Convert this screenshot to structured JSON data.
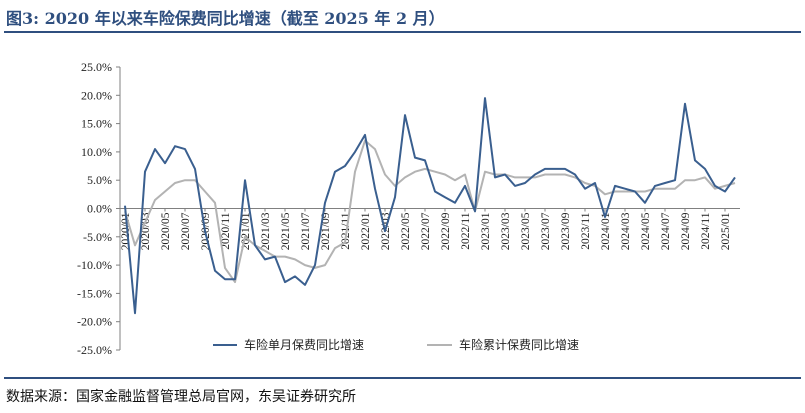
{
  "figure": {
    "title": "图3:  2020 年以来车险保费同比增速（截至 2025 年 2 月）",
    "source": "数据来源：国家金融监督管理总局官网，东吴证券研究所"
  },
  "chart_data": {
    "type": "line",
    "title": "",
    "xlabel": "",
    "ylabel": "",
    "ylim": [
      -25,
      25
    ],
    "y_ticks": [
      "25.0%",
      "20.0%",
      "15.0%",
      "10.0%",
      "5.0%",
      "0.0%",
      "-5.0%",
      "-10.0%",
      "-15.0%",
      "-20.0%",
      "-25.0%"
    ],
    "x_tick_labels": [
      "2020/01",
      "2020/03",
      "2020/05",
      "2020/07",
      "2020/09",
      "2020/11",
      "2021/01",
      "2021/03",
      "2021/05",
      "2021/07",
      "2021/09",
      "2021/11",
      "2022/01",
      "2022/03",
      "2022/05",
      "2022/07",
      "2022/09",
      "2022/11",
      "2023/01",
      "2023/03",
      "2023/05",
      "2023/07",
      "2023/09",
      "2023/11",
      "2024/01",
      "2024/03",
      "2024/05",
      "2024/07",
      "2024/09",
      "2024/11",
      "2025/01"
    ],
    "x": [
      "2020/01",
      "2020/02",
      "2020/03",
      "2020/04",
      "2020/05",
      "2020/06",
      "2020/07",
      "2020/08",
      "2020/09",
      "2020/10",
      "2020/11",
      "2020/12",
      "2021/01",
      "2021/02",
      "2021/03",
      "2021/04",
      "2021/05",
      "2021/06",
      "2021/07",
      "2021/08",
      "2021/09",
      "2021/10",
      "2021/11",
      "2021/12",
      "2022/01",
      "2022/02",
      "2022/03",
      "2022/04",
      "2022/05",
      "2022/06",
      "2022/07",
      "2022/08",
      "2022/09",
      "2022/10",
      "2022/11",
      "2022/12",
      "2023/01",
      "2023/02",
      "2023/03",
      "2023/04",
      "2023/05",
      "2023/06",
      "2023/07",
      "2023/08",
      "2023/09",
      "2023/10",
      "2023/11",
      "2023/12",
      "2024/01",
      "2024/02",
      "2024/03",
      "2024/04",
      "2024/05",
      "2024/06",
      "2024/07",
      "2024/08",
      "2024/09",
      "2024/10",
      "2024/11",
      "2024/12",
      "2025/01",
      "2025/02"
    ],
    "series": [
      {
        "name": "车险单月保费同比增速",
        "color": "#3a5f8f",
        "values": [
          0.5,
          -18.5,
          6.5,
          10.5,
          8.0,
          11.0,
          10.5,
          7.0,
          -4.0,
          -11.0,
          -12.5,
          -12.5,
          5.0,
          -6.5,
          -9.0,
          -8.5,
          -13.0,
          -12.0,
          -13.5,
          -10.0,
          1.0,
          6.5,
          7.5,
          10.0,
          13.0,
          3.5,
          -4.0,
          2.0,
          16.5,
          9.0,
          8.5,
          3.0,
          2.0,
          1.0,
          4.0,
          -0.5,
          19.5,
          5.5,
          6.0,
          4.0,
          4.5,
          6.0,
          7.0,
          7.0,
          7.0,
          6.0,
          3.5,
          4.5,
          -1.5,
          4.0,
          3.5,
          3.0,
          1.0,
          4.0,
          4.5,
          5.0,
          18.5,
          8.5,
          7.0,
          4.0,
          3.0,
          5.5
        ]
      },
      {
        "name": "车险累计保费同比增速",
        "color": "#b3b3b3",
        "values": [
          -0.5,
          -6.5,
          -2.5,
          1.5,
          3.0,
          4.5,
          5.0,
          5.0,
          3.0,
          1.0,
          -10.5,
          -13.0,
          -5.0,
          -6.5,
          -7.5,
          -8.5,
          -8.5,
          -9.0,
          -10.0,
          -10.5,
          -10.0,
          -7.0,
          -6.0,
          6.5,
          12.0,
          10.5,
          6.0,
          4.0,
          5.5,
          6.5,
          7.0,
          6.5,
          6.0,
          5.0,
          6.0,
          -0.5,
          6.5,
          6.0,
          6.0,
          5.5,
          5.5,
          5.5,
          6.0,
          6.0,
          6.0,
          5.5,
          4.5,
          4.0,
          2.5,
          3.0,
          3.0,
          3.0,
          3.0,
          3.5,
          3.5,
          3.5,
          5.0,
          5.0,
          5.5,
          3.5,
          4.0,
          4.5
        ]
      }
    ],
    "legend_position": "bottom",
    "grid": false
  }
}
